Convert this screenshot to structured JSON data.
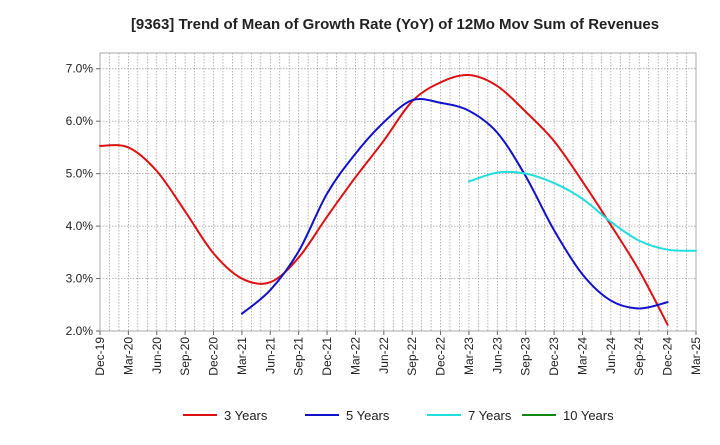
{
  "chart_data": {
    "type": "line",
    "title": "[9363]  Trend of Mean of Growth Rate (YoY) of 12Mo Mov Sum of Revenues",
    "xlabel": "",
    "ylabel": "",
    "ylim": [
      2.0,
      7.3
    ],
    "yticks": [
      2.0,
      3.0,
      4.0,
      5.0,
      6.0,
      7.0
    ],
    "ytick_labels": [
      "2.0%",
      "3.0%",
      "4.0%",
      "5.0%",
      "6.0%",
      "7.0%"
    ],
    "xlim": [
      "Dec-19",
      "Mar-25"
    ],
    "x_tick_labels": [
      "Dec-19",
      "Mar-20",
      "Jun-20",
      "Sep-20",
      "Dec-20",
      "Mar-21",
      "Jun-21",
      "Sep-21",
      "Dec-21",
      "Mar-22",
      "Jun-22",
      "Sep-22",
      "Dec-22",
      "Mar-23",
      "Jun-23",
      "Sep-23",
      "Dec-23",
      "Mar-24",
      "Jun-24",
      "Sep-24",
      "Dec-24",
      "Mar-25"
    ],
    "grid": "dotted, every month",
    "legend_position": "bottom",
    "series": [
      {
        "name": "3 Years",
        "color": "#dd1111",
        "start": "Dec-19",
        "step": "quarter",
        "values": [
          5.53,
          5.5,
          5.05,
          4.28,
          3.48,
          3.0,
          2.93,
          3.4,
          4.18,
          4.93,
          5.63,
          6.38,
          6.74,
          6.88,
          6.67,
          6.18,
          5.62,
          4.85,
          4.02,
          3.15,
          2.12
        ]
      },
      {
        "name": "5 Years",
        "color": "#1111cc",
        "start": "Mar-21",
        "step": "quarter",
        "values": [
          2.33,
          2.78,
          3.52,
          4.62,
          5.38,
          5.98,
          6.4,
          6.35,
          6.2,
          5.78,
          4.95,
          3.92,
          3.08,
          2.58,
          2.43,
          2.55
        ]
      },
      {
        "name": "7 Years",
        "color": "#22dddd",
        "start": "Mar-23",
        "step": "quarter",
        "values": [
          4.85,
          5.02,
          5.0,
          4.82,
          4.52,
          4.08,
          3.72,
          3.55,
          3.53
        ]
      },
      {
        "name": "10 Years",
        "color": "#118811",
        "start": "Dec-24",
        "step": "quarter",
        "values": []
      }
    ]
  }
}
